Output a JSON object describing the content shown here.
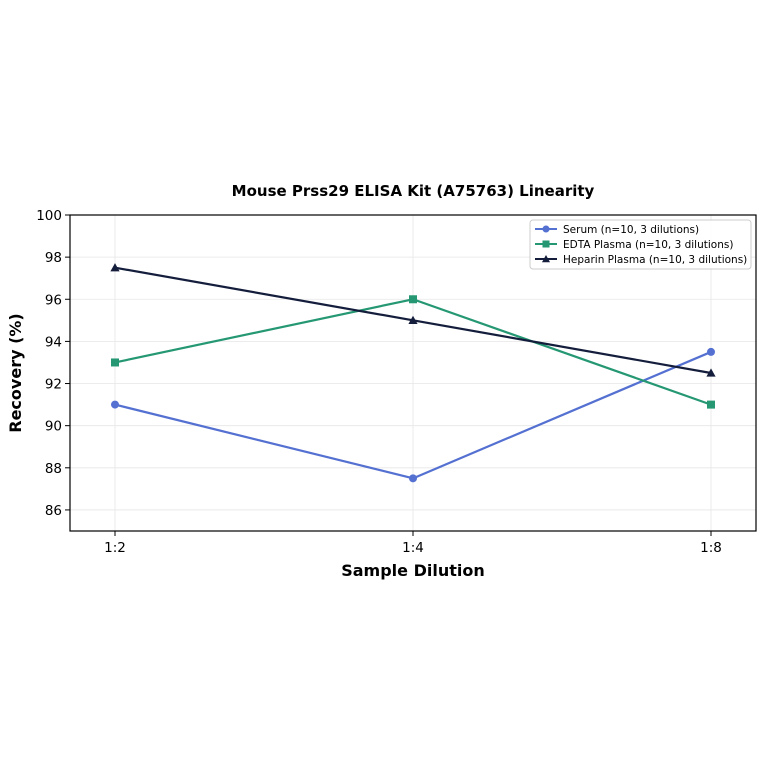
{
  "chart_data": {
    "type": "line",
    "title": "Mouse Prss29 ELISA Kit (A75763) Linearity",
    "xlabel": "Sample Dilution",
    "ylabel": "Recovery (%)",
    "categories": [
      "1:2",
      "1:4",
      "1:8"
    ],
    "ylim": [
      85,
      100
    ],
    "yticks": [
      86,
      88,
      90,
      92,
      94,
      96,
      98,
      100
    ],
    "grid": true,
    "legend_position": "top-right",
    "series": [
      {
        "name": "Serum (n=10, 3 dilutions)",
        "values": [
          91.0,
          87.5,
          93.5
        ],
        "color": "#5470d1",
        "marker": "circle"
      },
      {
        "name": "EDTA Plasma (n=10, 3 dilutions)",
        "values": [
          93.0,
          96.0,
          91.0
        ],
        "color": "#259873",
        "marker": "square"
      },
      {
        "name": "Heparin Plasma (n=10, 3 dilutions)",
        "values": [
          97.5,
          95.0,
          92.5
        ],
        "color": "#141e3c",
        "marker": "triangle"
      }
    ]
  }
}
